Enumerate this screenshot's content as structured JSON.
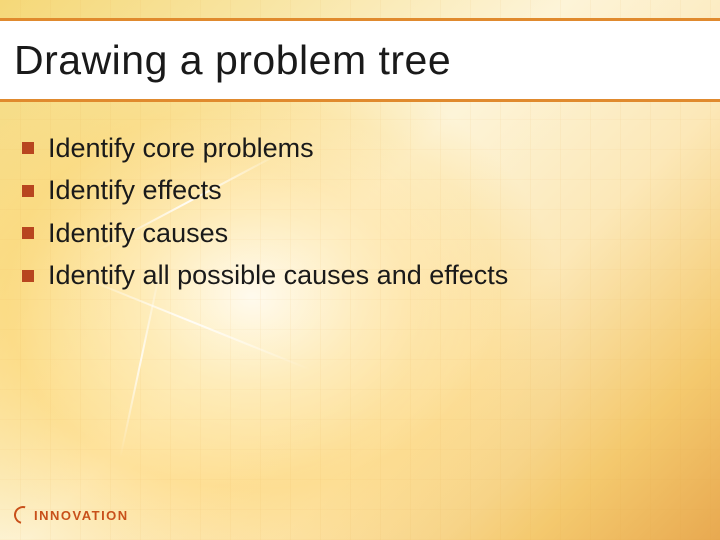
{
  "colors": {
    "accent": "#d8651a",
    "rule": "#e08a2e",
    "bullet": "#b8451f",
    "text": "#1a1a1a",
    "logo": "#c8501a"
  },
  "title": "Drawing a problem tree",
  "bullets": [
    "Identify core problems",
    "Identify effects",
    "Identify causes",
    "Identify all possible causes and effects"
  ],
  "footer": {
    "logo_text": "INNOVATION"
  },
  "typography": {
    "title_fontsize": 41,
    "bullet_fontsize": 27,
    "logo_fontsize": 13
  }
}
